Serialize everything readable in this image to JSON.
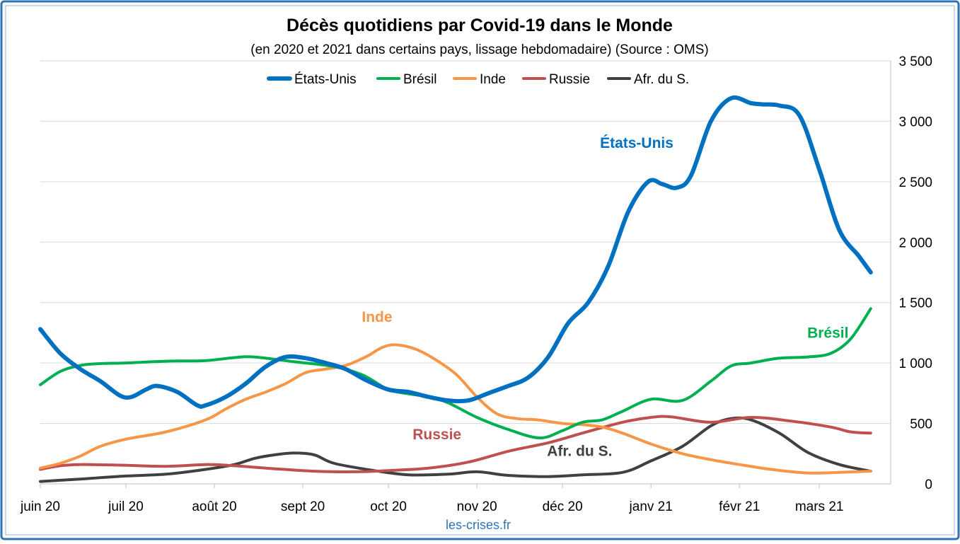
{
  "chart_data": {
    "type": "line",
    "title": "Décès quotidiens par Covid-19 dans le Monde",
    "subtitle": "(en 2020 et 2021 dans certains pays, lissage hebdomadaire) (Source : OMS)",
    "xlabel": "",
    "ylabel": "",
    "ylim": [
      0,
      3500
    ],
    "yticks": [
      {
        "value": 0,
        "label": "0"
      },
      {
        "value": 500,
        "label": "500"
      },
      {
        "value": 1000,
        "label": "1 000"
      },
      {
        "value": 1500,
        "label": "1 500"
      },
      {
        "value": 2000,
        "label": "2 000"
      },
      {
        "value": 2500,
        "label": "2 500"
      },
      {
        "value": 3000,
        "label": "3 000"
      },
      {
        "value": 3500,
        "label": "3 500"
      }
    ],
    "xlim": [
      "2020-06-01",
      "2021-03-26"
    ],
    "xticks": [
      {
        "date": "2020-06-01",
        "label": "juin 20"
      },
      {
        "date": "2020-07-01",
        "label": "juil 20"
      },
      {
        "date": "2020-08-01",
        "label": "août 20"
      },
      {
        "date": "2020-09-01",
        "label": "sept 20"
      },
      {
        "date": "2020-10-01",
        "label": "oct 20"
      },
      {
        "date": "2020-11-01",
        "label": "nov 20"
      },
      {
        "date": "2020-12-01",
        "label": "déc 20"
      },
      {
        "date": "2021-01-01",
        "label": "janv 21"
      },
      {
        "date": "2021-02-01",
        "label": "févr 21"
      },
      {
        "date": "2021-03-01",
        "label": "mars 21"
      }
    ],
    "grid": true,
    "legend_position": "top",
    "yaxis_side": "right",
    "series": [
      {
        "name": "États-Unis",
        "color": "#0070C0",
        "label": "États-Unis",
        "points": [
          [
            "2020-06-01",
            1280
          ],
          [
            "2020-06-08",
            1080
          ],
          [
            "2020-06-15",
            950
          ],
          [
            "2020-06-22",
            850
          ],
          [
            "2020-06-29",
            730
          ],
          [
            "2020-07-03",
            720
          ],
          [
            "2020-07-08",
            780
          ],
          [
            "2020-07-12",
            810
          ],
          [
            "2020-07-19",
            760
          ],
          [
            "2020-07-26",
            650
          ],
          [
            "2020-07-29",
            650
          ],
          [
            "2020-08-05",
            720
          ],
          [
            "2020-08-12",
            830
          ],
          [
            "2020-08-19",
            970
          ],
          [
            "2020-08-26",
            1050
          ],
          [
            "2020-09-02",
            1040
          ],
          [
            "2020-09-09",
            1000
          ],
          [
            "2020-09-16",
            950
          ],
          [
            "2020-09-23",
            860
          ],
          [
            "2020-10-01",
            780
          ],
          [
            "2020-10-08",
            760
          ],
          [
            "2020-10-15",
            720
          ],
          [
            "2020-10-22",
            690
          ],
          [
            "2020-10-29",
            690
          ],
          [
            "2020-11-05",
            750
          ],
          [
            "2020-11-12",
            810
          ],
          [
            "2020-11-19",
            880
          ],
          [
            "2020-11-26",
            1050
          ],
          [
            "2020-12-03",
            1330
          ],
          [
            "2020-12-10",
            1500
          ],
          [
            "2020-12-17",
            1800
          ],
          [
            "2020-12-24",
            2250
          ],
          [
            "2020-12-31",
            2500
          ],
          [
            "2021-01-05",
            2480
          ],
          [
            "2021-01-10",
            2450
          ],
          [
            "2021-01-15",
            2550
          ],
          [
            "2021-01-22",
            3000
          ],
          [
            "2021-01-29",
            3190
          ],
          [
            "2021-02-05",
            3150
          ],
          [
            "2021-02-09",
            3140
          ],
          [
            "2021-02-15",
            3130
          ],
          [
            "2021-02-22",
            3050
          ],
          [
            "2021-03-01",
            2600
          ],
          [
            "2021-03-08",
            2100
          ],
          [
            "2021-03-15",
            1880
          ],
          [
            "2021-03-19",
            1750
          ]
        ]
      },
      {
        "name": "Brésil",
        "color": "#00B050",
        "label": "Brésil",
        "points": [
          [
            "2020-06-01",
            820
          ],
          [
            "2020-06-08",
            930
          ],
          [
            "2020-06-15",
            980
          ],
          [
            "2020-06-22",
            995
          ],
          [
            "2020-07-01",
            1000
          ],
          [
            "2020-07-15",
            1015
          ],
          [
            "2020-07-29",
            1020
          ],
          [
            "2020-08-08",
            1045
          ],
          [
            "2020-08-15",
            1050
          ],
          [
            "2020-08-29",
            1010
          ],
          [
            "2020-09-12",
            970
          ],
          [
            "2020-09-22",
            900
          ],
          [
            "2020-10-01",
            780
          ],
          [
            "2020-10-08",
            745
          ],
          [
            "2020-10-15",
            720
          ],
          [
            "2020-10-22",
            670
          ],
          [
            "2020-11-01",
            550
          ],
          [
            "2020-11-12",
            450
          ],
          [
            "2020-11-23",
            380
          ],
          [
            "2020-12-01",
            440
          ],
          [
            "2020-12-08",
            510
          ],
          [
            "2020-12-15",
            530
          ],
          [
            "2020-12-22",
            600
          ],
          [
            "2021-01-01",
            700
          ],
          [
            "2021-01-12",
            690
          ],
          [
            "2021-01-22",
            850
          ],
          [
            "2021-01-29",
            975
          ],
          [
            "2021-02-05",
            1000
          ],
          [
            "2021-02-15",
            1040
          ],
          [
            "2021-02-25",
            1050
          ],
          [
            "2021-03-05",
            1080
          ],
          [
            "2021-03-12",
            1200
          ],
          [
            "2021-03-19",
            1450
          ]
        ]
      },
      {
        "name": "Inde",
        "color": "#F79646",
        "label": "Inde",
        "points": [
          [
            "2020-06-01",
            130
          ],
          [
            "2020-06-08",
            170
          ],
          [
            "2020-06-15",
            230
          ],
          [
            "2020-06-22",
            310
          ],
          [
            "2020-07-01",
            370
          ],
          [
            "2020-07-15",
            430
          ],
          [
            "2020-07-29",
            530
          ],
          [
            "2020-08-05",
            620
          ],
          [
            "2020-08-12",
            700
          ],
          [
            "2020-08-19",
            760
          ],
          [
            "2020-08-26",
            830
          ],
          [
            "2020-09-02",
            920
          ],
          [
            "2020-09-09",
            950
          ],
          [
            "2020-09-16",
            980
          ],
          [
            "2020-09-23",
            1050
          ],
          [
            "2020-09-29",
            1130
          ],
          [
            "2020-10-04",
            1150
          ],
          [
            "2020-10-11",
            1110
          ],
          [
            "2020-10-18",
            1020
          ],
          [
            "2020-10-25",
            900
          ],
          [
            "2020-11-01",
            720
          ],
          [
            "2020-11-08",
            580
          ],
          [
            "2020-11-15",
            540
          ],
          [
            "2020-11-22",
            530
          ],
          [
            "2020-12-01",
            500
          ],
          [
            "2020-12-08",
            490
          ],
          [
            "2020-12-15",
            470
          ],
          [
            "2020-12-22",
            420
          ],
          [
            "2021-01-01",
            330
          ],
          [
            "2021-01-12",
            250
          ],
          [
            "2021-01-22",
            200
          ],
          [
            "2021-02-01",
            160
          ],
          [
            "2021-02-12",
            120
          ],
          [
            "2021-02-25",
            90
          ],
          [
            "2021-03-08",
            95
          ],
          [
            "2021-03-19",
            105
          ]
        ]
      },
      {
        "name": "Russie",
        "color": "#C0504D",
        "label": "Russie",
        "points": [
          [
            "2020-06-01",
            120
          ],
          [
            "2020-06-08",
            150
          ],
          [
            "2020-06-15",
            160
          ],
          [
            "2020-06-29",
            155
          ],
          [
            "2020-07-15",
            145
          ],
          [
            "2020-07-29",
            160
          ],
          [
            "2020-08-08",
            150
          ],
          [
            "2020-08-22",
            125
          ],
          [
            "2020-09-05",
            105
          ],
          [
            "2020-09-19",
            100
          ],
          [
            "2020-10-01",
            110
          ],
          [
            "2020-10-15",
            130
          ],
          [
            "2020-10-29",
            180
          ],
          [
            "2020-11-12",
            270
          ],
          [
            "2020-11-26",
            340
          ],
          [
            "2020-12-08",
            420
          ],
          [
            "2020-12-22",
            510
          ],
          [
            "2021-01-01",
            550
          ],
          [
            "2021-01-08",
            555
          ],
          [
            "2021-01-22",
            510
          ],
          [
            "2021-02-05",
            550
          ],
          [
            "2021-02-19",
            520
          ],
          [
            "2021-03-05",
            470
          ],
          [
            "2021-03-12",
            430
          ],
          [
            "2021-03-19",
            420
          ]
        ]
      },
      {
        "name": "Afr. du S.",
        "color": "#404040",
        "label": "Afr. du S.",
        "points": [
          [
            "2020-06-01",
            20
          ],
          [
            "2020-06-15",
            40
          ],
          [
            "2020-07-01",
            65
          ],
          [
            "2020-07-15",
            80
          ],
          [
            "2020-07-29",
            120
          ],
          [
            "2020-08-08",
            160
          ],
          [
            "2020-08-15",
            210
          ],
          [
            "2020-08-22",
            240
          ],
          [
            "2020-08-29",
            255
          ],
          [
            "2020-09-05",
            240
          ],
          [
            "2020-09-12",
            170
          ],
          [
            "2020-09-26",
            110
          ],
          [
            "2020-10-08",
            75
          ],
          [
            "2020-10-22",
            80
          ],
          [
            "2020-11-01",
            100
          ],
          [
            "2020-11-12",
            70
          ],
          [
            "2020-11-26",
            60
          ],
          [
            "2020-12-08",
            75
          ],
          [
            "2020-12-22",
            95
          ],
          [
            "2021-01-01",
            190
          ],
          [
            "2021-01-12",
            310
          ],
          [
            "2021-01-22",
            480
          ],
          [
            "2021-01-29",
            540
          ],
          [
            "2021-02-05",
            530
          ],
          [
            "2021-02-15",
            420
          ],
          [
            "2021-02-25",
            260
          ],
          [
            "2021-03-08",
            160
          ],
          [
            "2021-03-19",
            105
          ]
        ]
      }
    ],
    "annotations": [
      {
        "text": "États-Unis",
        "color": "#0070C0",
        "date": "2020-12-27",
        "value": 2780
      },
      {
        "text": "Inde",
        "color": "#F79646",
        "date": "2020-09-27",
        "value": 1340
      },
      {
        "text": "Brésil",
        "color": "#00B050",
        "date": "2021-03-04",
        "value": 1210
      },
      {
        "text": "Russie",
        "color": "#C0504D",
        "date": "2020-10-18",
        "value": 370
      },
      {
        "text": "Afr. du S.",
        "color": "#404040",
        "date": "2020-12-07",
        "value": 230
      }
    ]
  },
  "credit": "les-crises.fr",
  "frame_color": "#2E75B6"
}
